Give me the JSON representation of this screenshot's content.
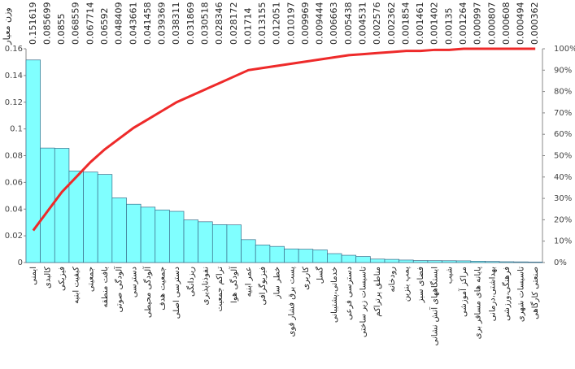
{
  "chart_data": {
    "type": "pareto",
    "y_label": "وزن معیار",
    "categories": [
      "ایمنی",
      "کالبدی",
      "فیزیکی",
      "کیفیت ابنیه",
      "جمعیتی",
      "بافت منطقه",
      "آلودگی صوتی",
      "دسترسی",
      "آلودگی محیطی",
      "جمعیت هدف",
      "دسترسی اصلی",
      "ریزدانگی",
      "نفوذناپذیری",
      "تراکم جمعیت",
      "آلودگی هوا",
      "عمر ابنیه",
      "فیزیوگرافی",
      "خطر ساز",
      "پست برق فشار قوی",
      "کاربری",
      "گسل",
      "خدماتی،پشتیبانی",
      "دسترسی فرعی",
      "تاسیسات زیر ساختی",
      "مناطق پرتراکم",
      "رودخانه",
      "پمپ بنزین",
      "فضای سبز",
      "ایستگاههای آتش نشانی",
      "شیب",
      "مراکز آموزشی",
      "پایانه های مسافر بری",
      "بهداشتی،درمانی",
      "فرهنگی،ورزشی",
      "تاسیسات شهری",
      "صنعتی کارگاهی"
    ],
    "series": [
      {
        "color": "#80ffff",
        "values": [
          0.151619,
          0.085699,
          0.0855,
          0.068559,
          0.067714,
          0.06592,
          0.048409,
          0.043661,
          0.041458,
          0.039369,
          0.038311,
          0.031869,
          0.030518,
          0.028346,
          0.028172,
          0.01714,
          0.013155,
          0.012051,
          0.010197,
          0.009969,
          0.009444,
          0.006663,
          0.005438,
          0.004531,
          0.002576,
          0.002362,
          0.001854,
          0.001461,
          0.001402,
          0.00135,
          0.001264,
          0.000997,
          0.000807,
          0.000608,
          0.000494,
          0.000362
        ]
      },
      {
        "color": "#ee2a2a",
        "axis": "y2",
        "values": [
          15,
          24,
          33,
          40,
          47,
          53,
          58,
          63,
          67,
          71,
          75,
          78,
          81,
          84,
          87,
          90,
          91,
          92,
          93,
          94,
          95,
          96,
          97,
          97.5,
          98,
          98.5,
          99,
          99,
          99.5,
          99.5,
          100,
          100,
          100,
          100,
          100,
          100
        ]
      }
    ],
    "ylim": [
      0,
      0.16
    ],
    "yticks": [
      0,
      0.02,
      0.04,
      0.06,
      0.08,
      0.1,
      0.12,
      0.14,
      0.16
    ],
    "y2lim": [
      0,
      100
    ],
    "y2ticks": [
      {
        "value": 0,
        "label": "0%"
      },
      {
        "value": 10,
        "label": "10%"
      },
      {
        "value": 20,
        "label": "20%"
      },
      {
        "value": 30,
        "label": "30%"
      },
      {
        "value": 40,
        "label": "40%"
      },
      {
        "value": 50,
        "label": "50%"
      },
      {
        "value": 60,
        "label": "60%"
      },
      {
        "value": 70,
        "label": "70%"
      },
      {
        "value": 80,
        "label": "80%"
      },
      {
        "value": 90,
        "label": "90%"
      },
      {
        "value": 100,
        "label": "100%"
      }
    ]
  }
}
